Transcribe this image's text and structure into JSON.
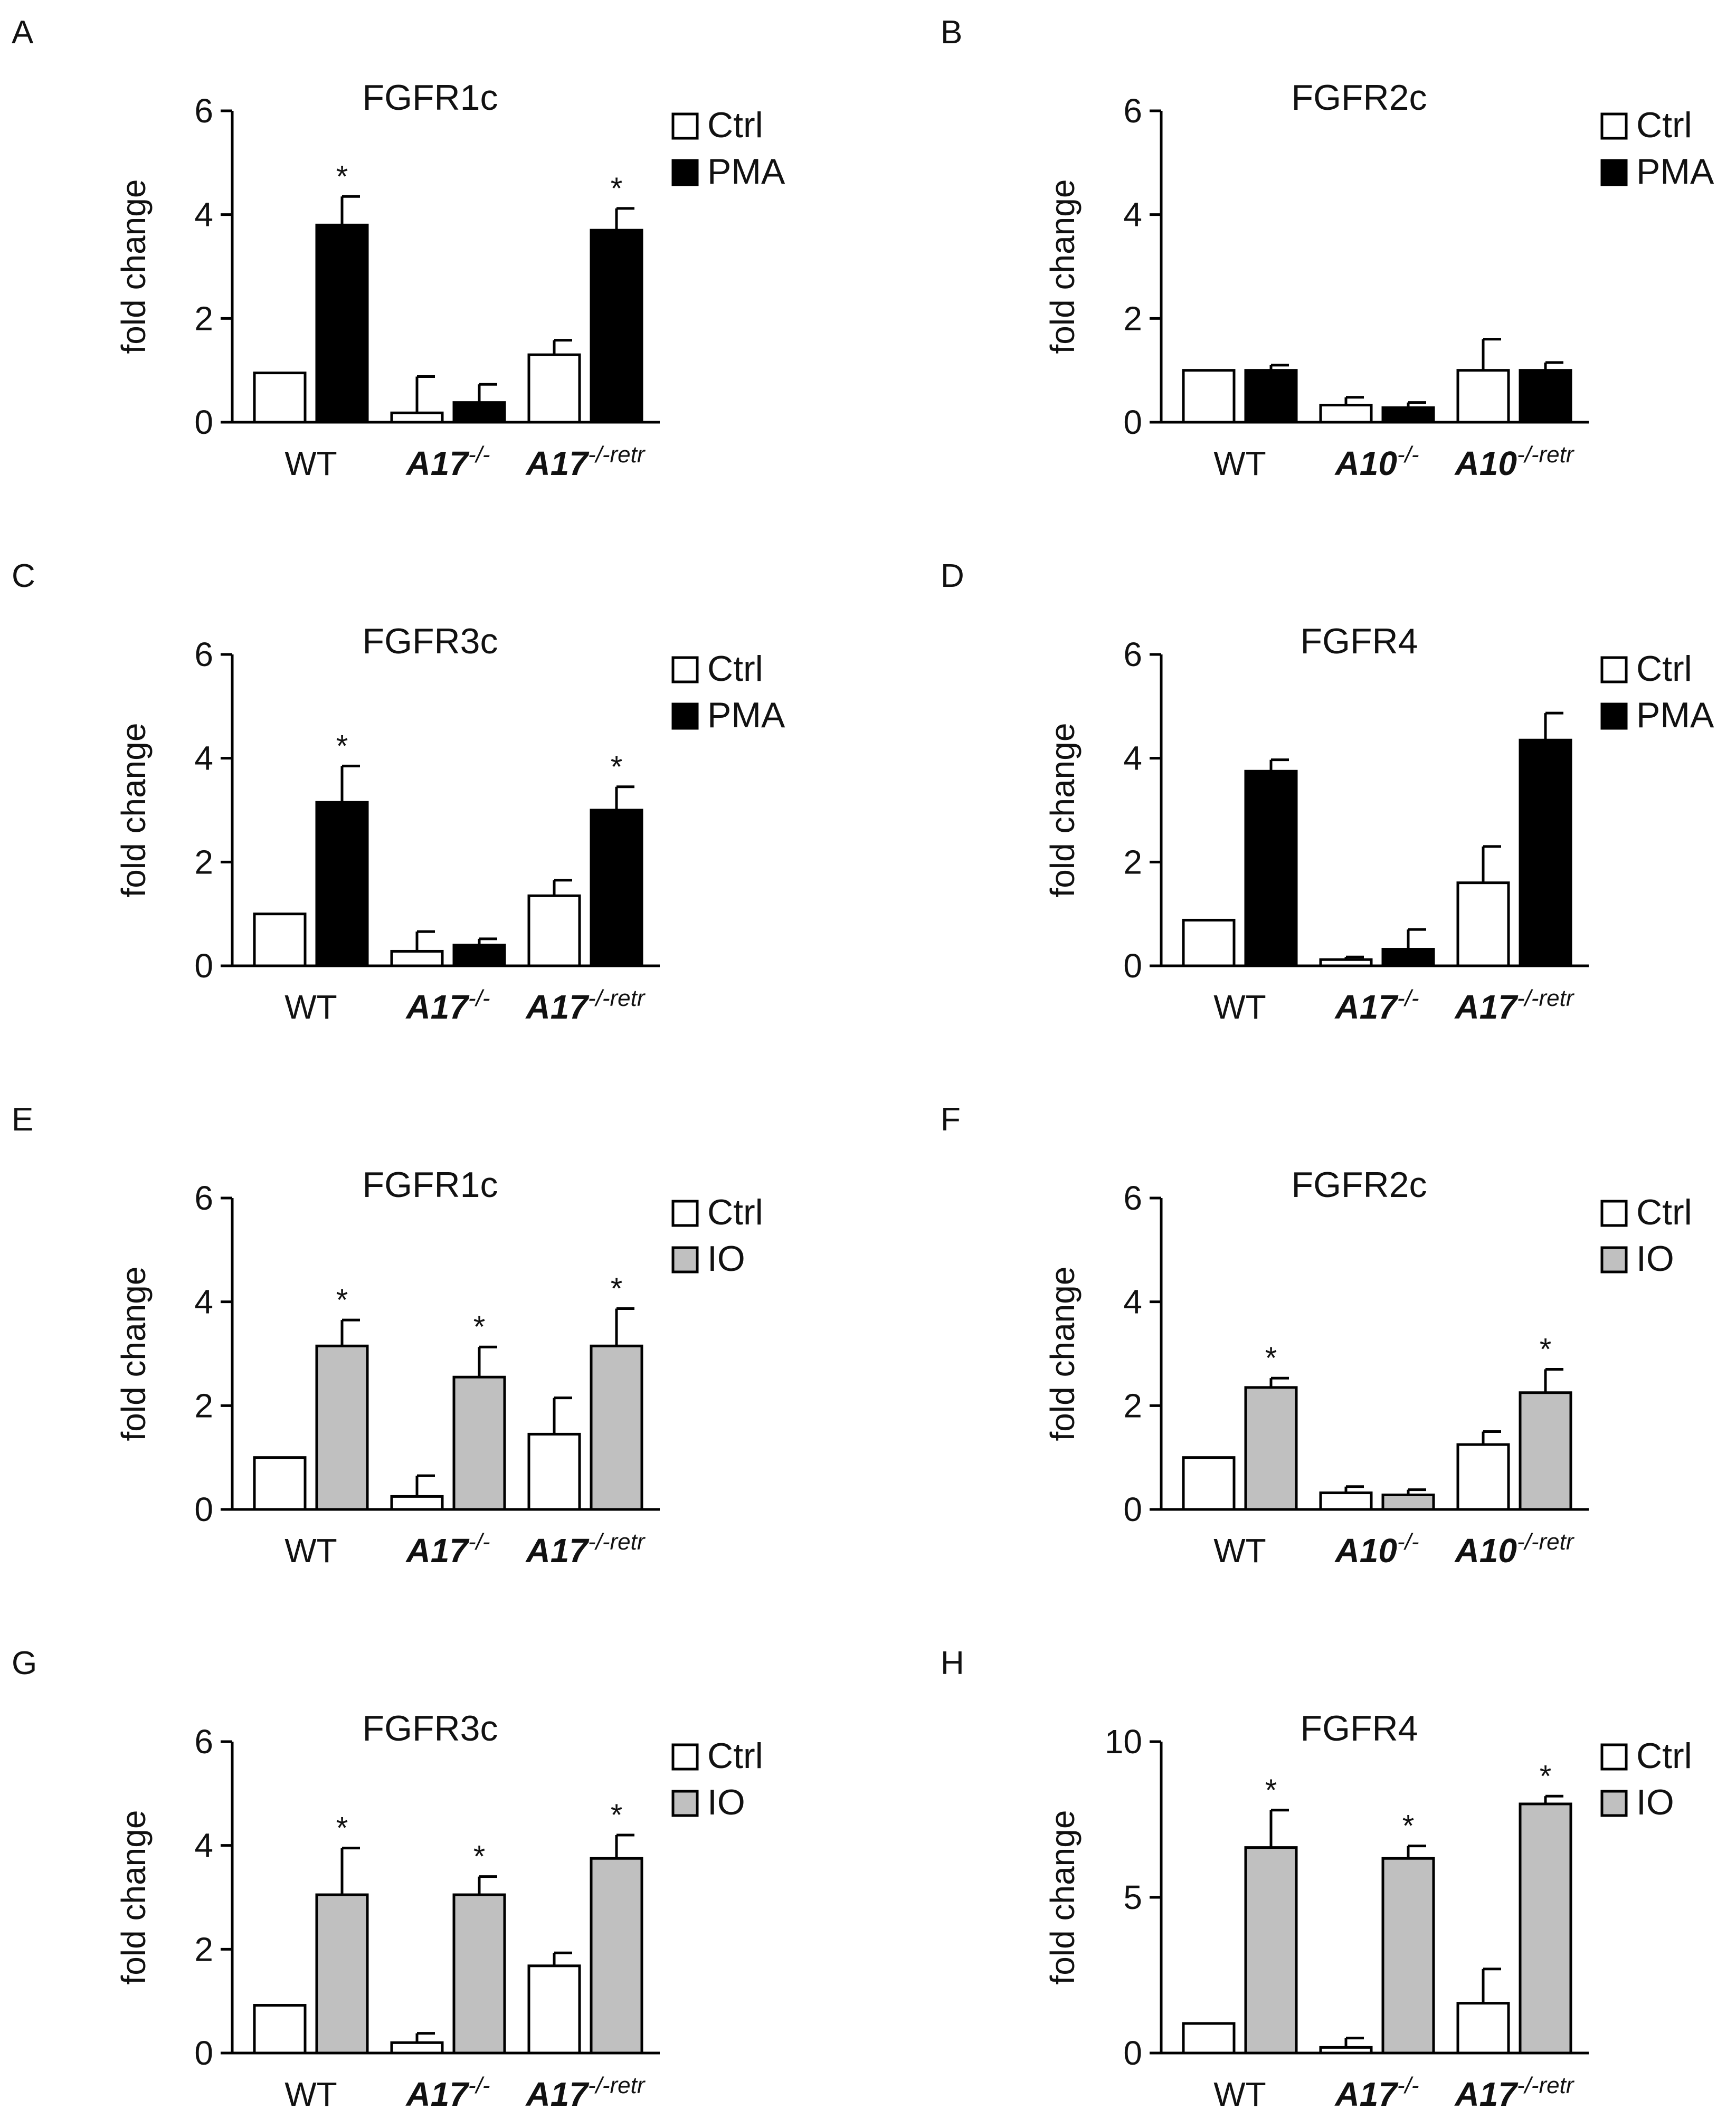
{
  "colors": {
    "ctrl": "#ffffff",
    "pma": "#000000",
    "io": "#c0c0c0",
    "stroke": "#000000"
  },
  "chart_data": [
    {
      "panel": "A",
      "type": "bar",
      "title": "FGFR1c",
      "ylabel": "fold change",
      "ylim": [
        0,
        6
      ],
      "yticks": [
        "0",
        "2",
        "4",
        "6"
      ],
      "ytick_values": [
        0,
        2,
        4,
        6
      ],
      "categories": [
        {
          "main": "WT",
          "sup": "",
          "italic": false
        },
        {
          "main": "A17",
          "sup": "-/-",
          "italic": true
        },
        {
          "main": "A17",
          "sup": "-/-retr",
          "italic": true
        }
      ],
      "series": [
        {
          "name": "Ctrl",
          "color": "#ffffff",
          "values": [
            0.95,
            0.18,
            1.3
          ],
          "errors": [
            0,
            0.7,
            0.28
          ],
          "stars": [
            "",
            "",
            ""
          ]
        },
        {
          "name": "PMA",
          "color": "#000000",
          "values": [
            3.8,
            0.38,
            3.7
          ],
          "errors": [
            0.55,
            0.35,
            0.42
          ],
          "stars": [
            "*",
            "",
            "*"
          ]
        }
      ]
    },
    {
      "panel": "B",
      "type": "bar",
      "title": "FGFR2c",
      "ylabel": "fold change",
      "ylim": [
        0,
        6
      ],
      "yticks": [
        "0",
        "2",
        "4",
        "6"
      ],
      "ytick_values": [
        0,
        2,
        4,
        6
      ],
      "categories": [
        {
          "main": "WT",
          "sup": "",
          "italic": false
        },
        {
          "main": "A10",
          "sup": "-/-",
          "italic": true
        },
        {
          "main": "A10",
          "sup": "-/-retr",
          "italic": true
        }
      ],
      "series": [
        {
          "name": "Ctrl",
          "color": "#ffffff",
          "values": [
            1.0,
            0.33,
            1.0
          ],
          "errors": [
            0,
            0.15,
            0.6
          ],
          "stars": [
            "",
            "",
            ""
          ]
        },
        {
          "name": "PMA",
          "color": "#000000",
          "values": [
            1.0,
            0.28,
            1.0
          ],
          "errors": [
            0.1,
            0.1,
            0.15
          ],
          "stars": [
            "",
            "",
            ""
          ]
        }
      ]
    },
    {
      "panel": "C",
      "type": "bar",
      "title": "FGFR3c",
      "ylabel": "fold change",
      "ylim": [
        0,
        6
      ],
      "yticks": [
        "0",
        "2",
        "4",
        "6"
      ],
      "ytick_values": [
        0,
        2,
        4,
        6
      ],
      "categories": [
        {
          "main": "WT",
          "sup": "",
          "italic": false
        },
        {
          "main": "A17",
          "sup": "-/-",
          "italic": true
        },
        {
          "main": "A17",
          "sup": "-/-retr",
          "italic": true
        }
      ],
      "series": [
        {
          "name": "Ctrl",
          "color": "#ffffff",
          "values": [
            1.0,
            0.28,
            1.35
          ],
          "errors": [
            0,
            0.38,
            0.3
          ],
          "stars": [
            "",
            "",
            ""
          ]
        },
        {
          "name": "PMA",
          "color": "#000000",
          "values": [
            3.15,
            0.4,
            3.0
          ],
          "errors": [
            0.7,
            0.12,
            0.45
          ],
          "stars": [
            "*",
            "",
            "*"
          ]
        }
      ]
    },
    {
      "panel": "D",
      "type": "bar",
      "title": "FGFR4",
      "ylabel": "fold change",
      "ylim": [
        0,
        6
      ],
      "yticks": [
        "0",
        "2",
        "4",
        "6"
      ],
      "ytick_values": [
        0,
        2,
        4,
        6
      ],
      "categories": [
        {
          "main": "WT",
          "sup": "",
          "italic": false
        },
        {
          "main": "A17",
          "sup": "-/-",
          "italic": true
        },
        {
          "main": "A17",
          "sup": "-/-retr",
          "italic": true
        }
      ],
      "series": [
        {
          "name": "Ctrl",
          "color": "#ffffff",
          "values": [
            0.88,
            0.12,
            1.6
          ],
          "errors": [
            0,
            0.05,
            0.7
          ],
          "stars": [
            "",
            "",
            ""
          ]
        },
        {
          "name": "PMA",
          "color": "#000000",
          "values": [
            3.75,
            0.32,
            4.35
          ],
          "errors": [
            0.22,
            0.38,
            0.52
          ],
          "stars": [
            "",
            "",
            ""
          ]
        }
      ]
    },
    {
      "panel": "E",
      "type": "bar",
      "title": "FGFR1c",
      "ylabel": "fold change",
      "ylim": [
        0,
        6
      ],
      "yticks": [
        "0",
        "2",
        "4",
        "6"
      ],
      "ytick_values": [
        0,
        2,
        4,
        6
      ],
      "categories": [
        {
          "main": "WT",
          "sup": "",
          "italic": false
        },
        {
          "main": "A17",
          "sup": "-/-",
          "italic": true
        },
        {
          "main": "A17",
          "sup": "-/-retr",
          "italic": true
        }
      ],
      "series": [
        {
          "name": "Ctrl",
          "color": "#ffffff",
          "values": [
            1.0,
            0.25,
            1.45
          ],
          "errors": [
            0,
            0.4,
            0.7
          ],
          "stars": [
            "",
            "",
            ""
          ]
        },
        {
          "name": "IO",
          "color": "#c0c0c0",
          "values": [
            3.15,
            2.55,
            3.15
          ],
          "errors": [
            0.5,
            0.58,
            0.72
          ],
          "stars": [
            "*",
            "*",
            "*"
          ]
        }
      ]
    },
    {
      "panel": "F",
      "type": "bar",
      "title": "FGFR2c",
      "ylabel": "fold change",
      "ylim": [
        0,
        6
      ],
      "yticks": [
        "0",
        "2",
        "4",
        "6"
      ],
      "ytick_values": [
        0,
        2,
        4,
        6
      ],
      "categories": [
        {
          "main": "WT",
          "sup": "",
          "italic": false
        },
        {
          "main": "A10",
          "sup": "-/-",
          "italic": true
        },
        {
          "main": "A10",
          "sup": "-/-retr",
          "italic": true
        }
      ],
      "series": [
        {
          "name": "Ctrl",
          "color": "#ffffff",
          "values": [
            1.0,
            0.32,
            1.25
          ],
          "errors": [
            0,
            0.12,
            0.25
          ],
          "stars": [
            "",
            "",
            ""
          ]
        },
        {
          "name": "IO",
          "color": "#c0c0c0",
          "values": [
            2.35,
            0.28,
            2.25
          ],
          "errors": [
            0.18,
            0.1,
            0.45
          ],
          "stars": [
            "*",
            "",
            "*"
          ]
        }
      ]
    },
    {
      "panel": "G",
      "type": "bar",
      "title": "FGFR3c",
      "ylabel": "fold change",
      "ylim": [
        0,
        6
      ],
      "yticks": [
        "0",
        "2",
        "4",
        "6"
      ],
      "ytick_values": [
        0,
        2,
        4,
        6
      ],
      "categories": [
        {
          "main": "WT",
          "sup": "",
          "italic": false
        },
        {
          "main": "A17",
          "sup": "-/-",
          "italic": true
        },
        {
          "main": "A17",
          "sup": "-/-retr",
          "italic": true
        }
      ],
      "series": [
        {
          "name": "Ctrl",
          "color": "#ffffff",
          "values": [
            0.92,
            0.2,
            1.68
          ],
          "errors": [
            0,
            0.18,
            0.25
          ],
          "stars": [
            "",
            "",
            ""
          ]
        },
        {
          "name": "IO",
          "color": "#c0c0c0",
          "values": [
            3.05,
            3.05,
            3.75
          ],
          "errors": [
            0.9,
            0.35,
            0.45
          ],
          "stars": [
            "*",
            "*",
            "*"
          ]
        }
      ]
    },
    {
      "panel": "H",
      "type": "bar",
      "title": "FGFR4",
      "ylabel": "fold change",
      "ylim": [
        0,
        10
      ],
      "yticks": [
        "0",
        "5",
        "10"
      ],
      "ytick_values": [
        0,
        5,
        10
      ],
      "categories": [
        {
          "main": "WT",
          "sup": "",
          "italic": false
        },
        {
          "main": "A17",
          "sup": "-/-",
          "italic": true
        },
        {
          "main": "A17",
          "sup": "-/-retr",
          "italic": true
        }
      ],
      "series": [
        {
          "name": "Ctrl",
          "color": "#ffffff",
          "values": [
            0.95,
            0.18,
            1.6
          ],
          "errors": [
            0,
            0.3,
            1.1
          ],
          "stars": [
            "",
            "",
            ""
          ]
        },
        {
          "name": "IO",
          "color": "#c0c0c0",
          "values": [
            6.6,
            6.25,
            8.0
          ],
          "errors": [
            1.2,
            0.4,
            0.25
          ],
          "stars": [
            "*",
            "*",
            "*"
          ]
        }
      ]
    }
  ]
}
